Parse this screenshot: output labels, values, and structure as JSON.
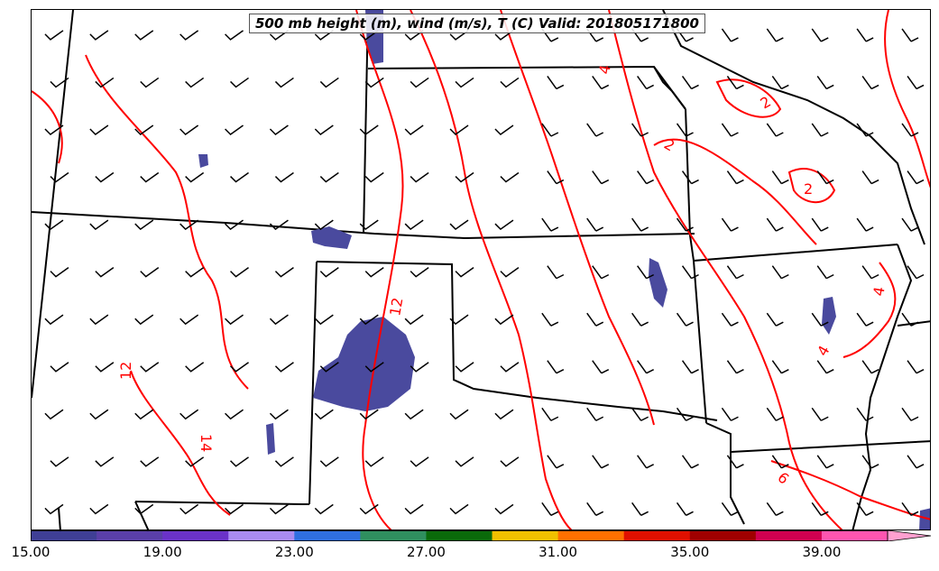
{
  "title": "500 mb height (m), wind (m/s), T (C) Valid: 201805171800",
  "colorbar": {
    "tick_labels": [
      "15.00",
      "19.00",
      "23.00",
      "27.00",
      "31.00",
      "35.00",
      "39.00"
    ],
    "colors": [
      "#3f3f96",
      "#5a3fa8",
      "#6a32c8",
      "#a98bf0",
      "#2f6fe0",
      "#2f8f5f",
      "#0a6a0a",
      "#f0c000",
      "#ff7000",
      "#e01000",
      "#a00000",
      "#d00050",
      "#ff55b0",
      "#ffa0d0"
    ]
  },
  "contour_labels": [
    "12",
    "12",
    "14",
    "2",
    "2",
    "2",
    "4",
    "4",
    "4",
    "6"
  ],
  "colors": {
    "temperature_contour": "#ff0000",
    "wind_shading": "#4a4a9e",
    "boundaries": "#000000"
  }
}
